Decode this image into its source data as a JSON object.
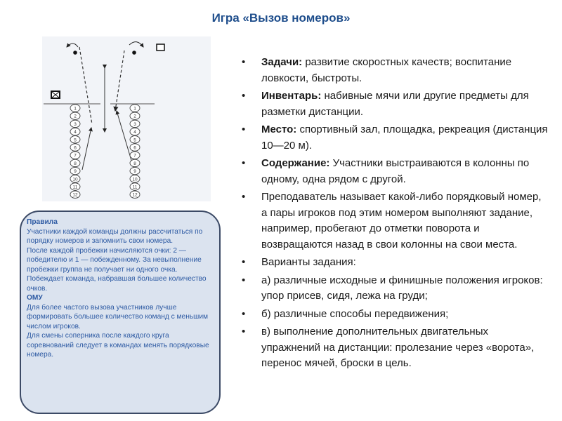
{
  "title": "Игра «Вызов номеров»",
  "diagram": {
    "numbers": [
      "1",
      "2",
      "3",
      "4",
      "5",
      "6",
      "7",
      "8",
      "9",
      "10",
      "11",
      "12"
    ]
  },
  "rules": {
    "heading": "Правила",
    "lines": [
      "Участники каждой команды должны рассчитаться по порядку номеров и запомнить свои номера.",
      "После каждой пробежки начисляются очки: 2 — победителю и 1 — побежденному. За невыполнение пробежки группа не получает ни одного очка.",
      "Побеждает команда, набравшая большее количество очков."
    ],
    "heading2": "ОМУ",
    "lines2": [
      "Для более частого вызова участников лучше формировать большее количество команд с меньшим числом игроков.",
      "Для смены соперника после каждого круга соревнований следует в командах менять порядковые номера."
    ]
  },
  "bullets": [
    {
      "bold": "Задачи:",
      "text": " развитие скоростных качеств; воспитание ловкости, быстроты."
    },
    {
      "bold": "Инвентарь:",
      "text": " набивные мячи или другие предметы для разметки дистанции."
    },
    {
      "bold": "Место:",
      "text": " спортивный зал, площадка, рекреация (дистанция 10—20 м)."
    },
    {
      "bold": "Содержание:",
      "text": " Участники выстраиваются в колонны по одному, одна рядом с другой."
    },
    {
      "bold": "",
      "text": "Преподаватель называет какой-либо порядковый номер, а пары игроков под этим номером выполняют задание, например, пробегают до отметки поворота и возвращаются назад в свои колонны на свои места."
    },
    {
      "bold": "",
      "text": "Варианты задания:"
    },
    {
      "bold": "",
      "text": "а) различные исходные и финишные положения игроков: упор присев, сидя, лежа на груди;"
    },
    {
      "bold": "",
      "text": "б) различные способы передвижения;"
    },
    {
      "bold": "",
      "text": "в) выполнение дополнительных двигательных упражнений на дистанции: пролезание через «ворота», перенос мячей, броски в цель."
    }
  ]
}
